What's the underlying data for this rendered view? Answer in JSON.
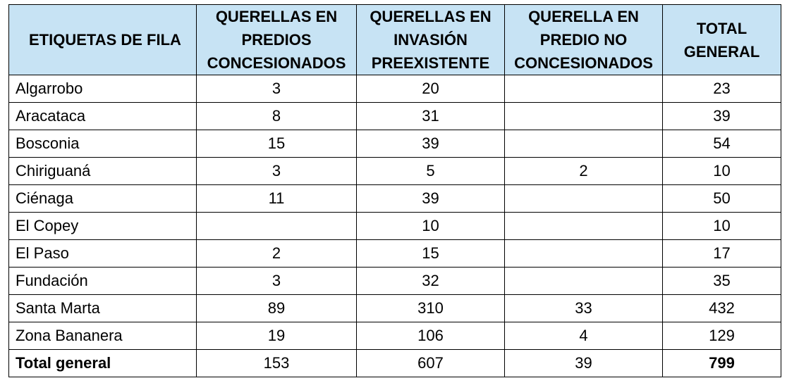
{
  "table": {
    "headers": [
      [
        "ETIQUETAS DE FILA"
      ],
      [
        "QUERELLAS EN",
        "PREDIOS",
        "CONCESIONADOS"
      ],
      [
        "QUERELLAS EN",
        "INVASIÓN",
        "PREEXISTENTE"
      ],
      [
        "QUERELLA EN",
        "PREDIO NO",
        "CONCESIONADOS"
      ],
      [
        "TOTAL",
        "GENERAL"
      ]
    ],
    "rows": [
      [
        "Algarrobo",
        "3",
        "20",
        "",
        "23"
      ],
      [
        "Aracataca",
        "8",
        "31",
        "",
        "39"
      ],
      [
        "Bosconia",
        "15",
        "39",
        "",
        "54"
      ],
      [
        "Chiriguaná",
        "3",
        "5",
        "2",
        "10"
      ],
      [
        "Ciénaga",
        "11",
        "39",
        "",
        "50"
      ],
      [
        "El Copey",
        "",
        "10",
        "",
        "10"
      ],
      [
        "El Paso",
        "2",
        "15",
        "",
        "17"
      ],
      [
        "Fundación",
        "3",
        "32",
        "",
        "35"
      ],
      [
        "Santa Marta",
        "89",
        "310",
        "33",
        "432"
      ],
      [
        "Zona Bananera",
        "19",
        "106",
        "4",
        "129"
      ]
    ],
    "total": [
      "Total general",
      "153",
      "607",
      "39",
      "799"
    ]
  }
}
